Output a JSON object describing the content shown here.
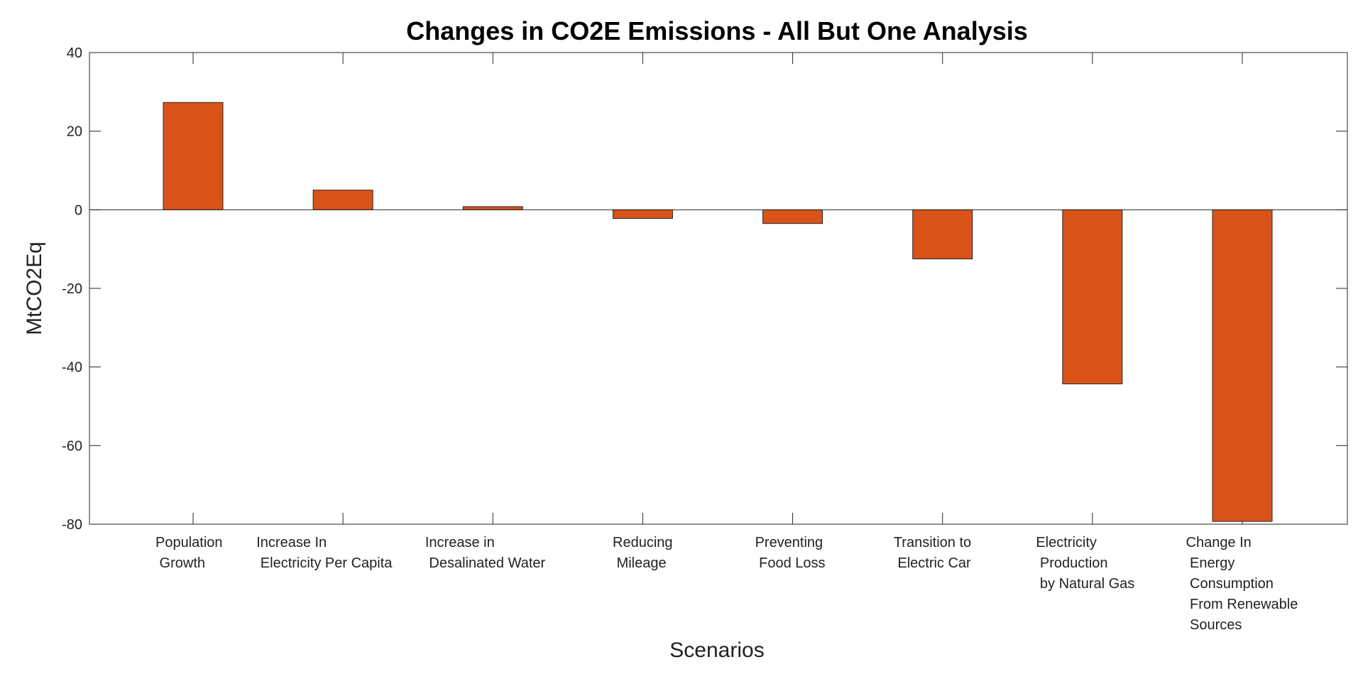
{
  "chart_data": {
    "type": "bar",
    "title": "Changes in CO2E Emissions - All But One Analysis",
    "xlabel": "Scenarios",
    "ylabel": "MtCO2Eq",
    "ylim": [
      -80,
      40
    ],
    "yticks": [
      40,
      20,
      0,
      -20,
      -40,
      -60,
      -80
    ],
    "grid": false,
    "categories": [
      [
        "Population",
        " Growth"
      ],
      [
        "Increase In",
        " Electricity Per Capita"
      ],
      [
        "Increase in",
        " Desalinated Water"
      ],
      [
        "Reducing",
        " Mileage"
      ],
      [
        "Preventing",
        " Food Loss"
      ],
      [
        "Transition to",
        " Electric Car"
      ],
      [
        "Electricity",
        " Production",
        " by Natural Gas"
      ],
      [
        "Change In",
        " Energy",
        " Consumption",
        " From Renewable",
        " Sources"
      ]
    ],
    "values": [
      27.3,
      5.0,
      0.8,
      -2.2,
      -3.5,
      -12.5,
      -44.3,
      -79.3
    ],
    "bar_color": "#d95319"
  }
}
